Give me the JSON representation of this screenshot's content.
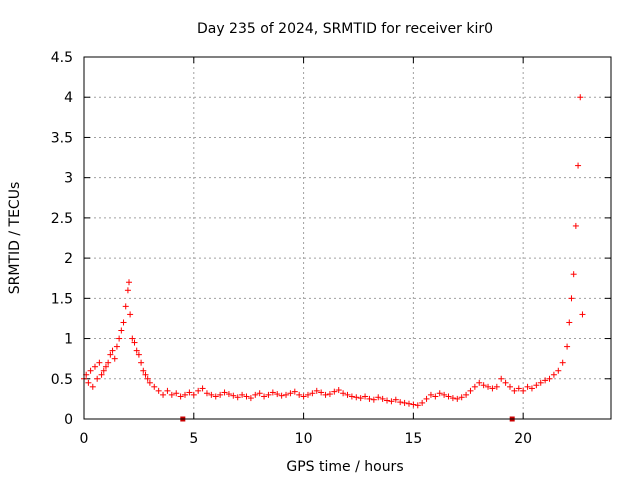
{
  "chart_data": {
    "type": "scatter",
    "title": "Day 235 of 2024, SRMTID for receiver kir0",
    "xlabel": "GPS time / hours",
    "ylabel": "SRMTID / TECUs",
    "xlim": [
      0,
      24
    ],
    "ylim": [
      0,
      4.5
    ],
    "xticks": [
      0,
      5,
      10,
      15,
      20
    ],
    "xtick_labels": [
      "0",
      "5",
      "10",
      "15",
      "20"
    ],
    "yticks": [
      0,
      0.5,
      1,
      1.5,
      2,
      2.5,
      3,
      3.5,
      4,
      4.5
    ],
    "ytick_labels": [
      "0",
      "0.5",
      "1",
      "1.5",
      "2",
      "2.5",
      "3",
      "3.5",
      "4",
      "4.5"
    ],
    "grid": true,
    "marker": "+",
    "color": "#ff0000",
    "axis_markers_x": [
      4.5,
      19.5
    ],
    "series": [
      {
        "name": "SRMTID",
        "x": [
          0.0,
          0.1,
          0.2,
          0.3,
          0.4,
          0.5,
          0.6,
          0.7,
          0.8,
          0.9,
          1.0,
          1.1,
          1.2,
          1.3,
          1.4,
          1.5,
          1.6,
          1.7,
          1.8,
          1.9,
          2.0,
          2.05,
          2.1,
          2.2,
          2.3,
          2.4,
          2.5,
          2.6,
          2.7,
          2.8,
          2.9,
          3.0,
          3.2,
          3.4,
          3.6,
          3.8,
          4.0,
          4.2,
          4.4,
          4.6,
          4.8,
          5.0,
          5.2,
          5.4,
          5.6,
          5.8,
          6.0,
          6.2,
          6.4,
          6.6,
          6.8,
          7.0,
          7.2,
          7.4,
          7.6,
          7.8,
          8.0,
          8.2,
          8.4,
          8.6,
          8.8,
          9.0,
          9.2,
          9.4,
          9.6,
          9.8,
          10.0,
          10.2,
          10.4,
          10.6,
          10.8,
          11.0,
          11.2,
          11.4,
          11.6,
          11.8,
          12.0,
          12.2,
          12.4,
          12.6,
          12.8,
          13.0,
          13.2,
          13.4,
          13.6,
          13.8,
          14.0,
          14.2,
          14.4,
          14.6,
          14.8,
          15.0,
          15.2,
          15.4,
          15.6,
          15.8,
          16.0,
          16.2,
          16.4,
          16.6,
          16.8,
          17.0,
          17.2,
          17.4,
          17.6,
          17.8,
          18.0,
          18.2,
          18.4,
          18.6,
          18.8,
          19.0,
          19.2,
          19.4,
          19.6,
          19.8,
          20.0,
          20.2,
          20.4,
          20.6,
          20.8,
          21.0,
          21.2,
          21.4,
          21.6,
          21.8,
          22.0,
          22.1,
          22.2,
          22.3,
          22.4,
          22.5,
          22.6,
          22.7
        ],
        "y": [
          0.5,
          0.55,
          0.45,
          0.6,
          0.4,
          0.65,
          0.5,
          0.7,
          0.55,
          0.6,
          0.65,
          0.7,
          0.8,
          0.85,
          0.75,
          0.9,
          1.0,
          1.1,
          1.2,
          1.4,
          1.6,
          1.7,
          1.3,
          1.0,
          0.95,
          0.85,
          0.8,
          0.7,
          0.6,
          0.55,
          0.5,
          0.45,
          0.4,
          0.35,
          0.3,
          0.35,
          0.3,
          0.32,
          0.28,
          0.3,
          0.33,
          0.3,
          0.35,
          0.38,
          0.32,
          0.3,
          0.28,
          0.3,
          0.33,
          0.31,
          0.29,
          0.27,
          0.3,
          0.28,
          0.26,
          0.3,
          0.32,
          0.28,
          0.3,
          0.33,
          0.31,
          0.29,
          0.3,
          0.32,
          0.34,
          0.3,
          0.28,
          0.3,
          0.32,
          0.35,
          0.33,
          0.3,
          0.31,
          0.34,
          0.36,
          0.32,
          0.3,
          0.28,
          0.27,
          0.26,
          0.28,
          0.25,
          0.24,
          0.27,
          0.25,
          0.23,
          0.22,
          0.24,
          0.21,
          0.2,
          0.19,
          0.18,
          0.17,
          0.2,
          0.25,
          0.3,
          0.28,
          0.32,
          0.3,
          0.28,
          0.26,
          0.25,
          0.27,
          0.3,
          0.35,
          0.4,
          0.45,
          0.42,
          0.4,
          0.38,
          0.4,
          0.5,
          0.45,
          0.4,
          0.35,
          0.38,
          0.35,
          0.4,
          0.38,
          0.42,
          0.45,
          0.48,
          0.5,
          0.55,
          0.6,
          0.7,
          0.9,
          1.2,
          1.5,
          1.8,
          2.4,
          3.15,
          4.0,
          1.3
        ]
      }
    ]
  }
}
